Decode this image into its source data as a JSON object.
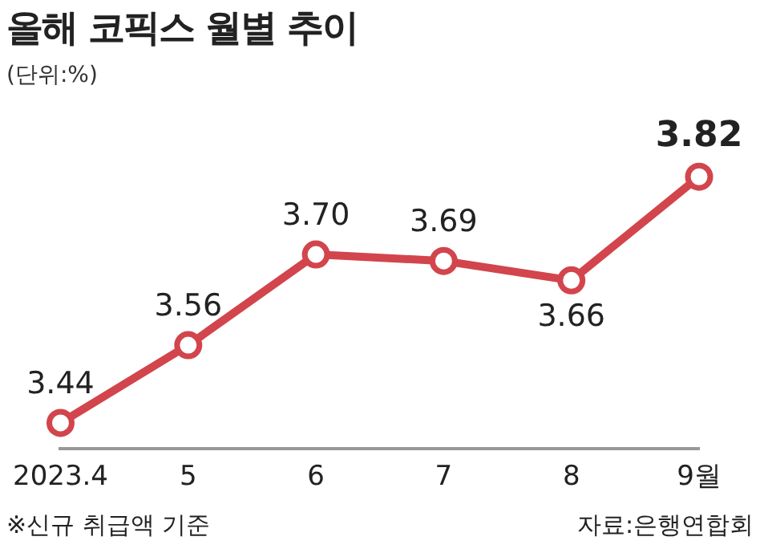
{
  "chart_data": {
    "type": "line",
    "title": "올해 코픽스 월별 추이",
    "subtitle": "(단위:%)",
    "categories": [
      "2023.4",
      "5",
      "6",
      "7",
      "8",
      "9월"
    ],
    "series": [
      {
        "color": "#d2454c",
        "values": [
          3.44,
          3.56,
          3.7,
          3.69,
          3.66,
          3.82
        ],
        "value_labels": [
          "3.44",
          "3.56",
          "3.70",
          "3.69",
          "3.66",
          "3.82"
        ]
      }
    ],
    "marker": "circle",
    "grid": false,
    "legend": false,
    "annotations": [
      "※신규 취급액 기준",
      "자료:은행연합회"
    ]
  }
}
